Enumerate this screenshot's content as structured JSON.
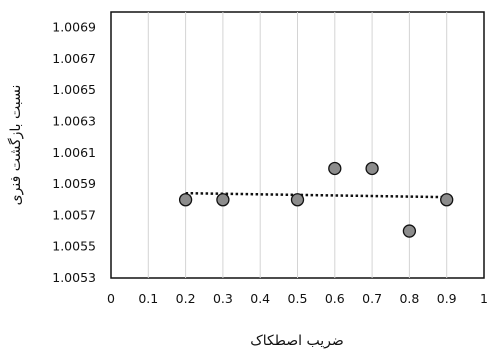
{
  "chart_data": {
    "type": "scatter",
    "title": "",
    "xlabel": "ضریب اصطکاک",
    "ylabel": "نسبت بازگشت فنری",
    "xlim": [
      0,
      1
    ],
    "ylim": [
      1.0053,
      1.007
    ],
    "x_ticks": [
      "0",
      "0.1",
      "0.2",
      "0.3",
      "0.4",
      "0.5",
      "0.6",
      "0.7",
      "0.8",
      "0.9",
      "1"
    ],
    "y_ticks": [
      "1.0053",
      "1.0055",
      "1.0057",
      "1.0059",
      "1.0061",
      "1.0063",
      "1.0065",
      "1.0067",
      "1.0069"
    ],
    "grid": "vertical",
    "series": [
      {
        "marker_color": "#8c8c8c",
        "x": [
          0.2,
          0.3,
          0.5,
          0.6,
          0.7,
          0.8,
          0.9
        ],
        "y": [
          1.0058,
          1.0058,
          1.0058,
          1.006,
          1.006,
          1.0056,
          1.0058
        ]
      }
    ],
    "trendline": {
      "type": "linear",
      "style": "dotted",
      "x_range": [
        0.2,
        0.9
      ]
    }
  }
}
